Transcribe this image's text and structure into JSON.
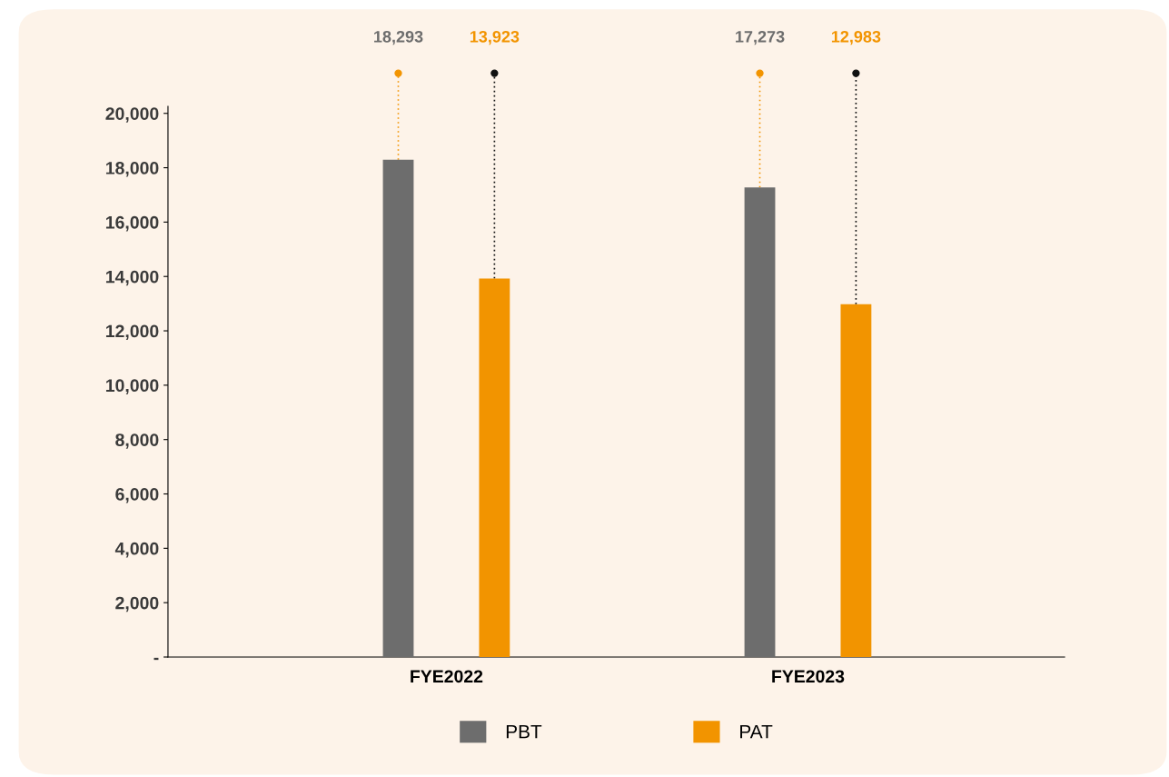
{
  "chart_data": {
    "type": "bar",
    "categories": [
      "FYE2022",
      "FYE2023"
    ],
    "series": [
      {
        "name": "PBT",
        "color": "#6d6d6d",
        "values": [
          18293,
          17273
        ]
      },
      {
        "name": "PAT",
        "color": "#f29400",
        "values": [
          13923,
          12983
        ]
      }
    ],
    "ylim": [
      0,
      20260
    ],
    "yticks": [
      {
        "value": 0,
        "label": "-"
      },
      {
        "value": 2000,
        "label": "2,000"
      },
      {
        "value": 4000,
        "label": "4,000"
      },
      {
        "value": 6000,
        "label": "6,000"
      },
      {
        "value": 8000,
        "label": "8,000"
      },
      {
        "value": 10000,
        "label": "10,000"
      },
      {
        "value": 12000,
        "label": "12,000"
      },
      {
        "value": 14000,
        "label": "14,000"
      },
      {
        "value": 16000,
        "label": "16,000"
      },
      {
        "value": 18000,
        "label": "18,000"
      },
      {
        "value": 20000,
        "label": "20,000"
      }
    ],
    "value_labels": [
      [
        "18,293",
        "17,273"
      ],
      [
        "13,923",
        "12,983"
      ]
    ],
    "grid": false,
    "legend": "bottom"
  }
}
